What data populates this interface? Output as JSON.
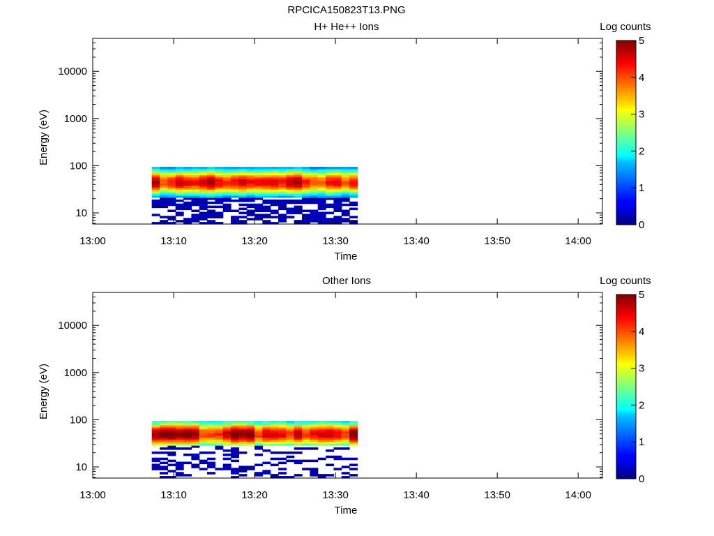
{
  "title": "RPCICA150823T13.PNG",
  "chart_data": [
    {
      "type": "heatmap",
      "title": "H+ He++ Ions",
      "xlabel": "Time",
      "ylabel": "Energy (eV)",
      "x_ticks": [
        "13:00",
        "13:10",
        "13:20",
        "13:30",
        "13:40",
        "13:50",
        "14:00"
      ],
      "x_range_minutes": [
        0,
        63
      ],
      "y_scale": "log",
      "y_range": [
        5.8,
        50000
      ],
      "y_ticks": [
        10,
        100,
        1000,
        10000
      ],
      "y_tick_labels": [
        "10",
        "100",
        "1000",
        "10000"
      ],
      "colorbar": {
        "label": "Log counts",
        "range": [
          0,
          5
        ],
        "ticks": [
          "0",
          "1",
          "2",
          "3",
          "4",
          "5"
        ]
      },
      "data_time_range_minutes": [
        7.3,
        32.7
      ],
      "data_energy_range_eV": [
        5.8,
        95
      ],
      "peak_energy_eV": 45,
      "peak_log_counts": 4.6,
      "low_energy_sparse_below_eV": 22
    },
    {
      "type": "heatmap",
      "title": "Other Ions",
      "xlabel": "Time",
      "ylabel": "Energy (eV)",
      "x_ticks": [
        "13:00",
        "13:10",
        "13:20",
        "13:30",
        "13:40",
        "13:50",
        "14:00"
      ],
      "x_range_minutes": [
        0,
        63
      ],
      "y_scale": "log",
      "y_range": [
        5.8,
        50000
      ],
      "y_ticks": [
        10,
        100,
        1000,
        10000
      ],
      "y_tick_labels": [
        "10",
        "100",
        "1000",
        "10000"
      ],
      "colorbar": {
        "label": "Log counts",
        "range": [
          0,
          5
        ],
        "ticks": [
          "0",
          "1",
          "2",
          "3",
          "4",
          "5"
        ]
      },
      "data_time_range_minutes": [
        7.3,
        32.7
      ],
      "data_energy_range_eV": [
        5.8,
        95
      ],
      "peak_energy_eV": 50,
      "peak_log_counts": 4.8,
      "low_energy_sparse_below_eV": 28
    }
  ]
}
